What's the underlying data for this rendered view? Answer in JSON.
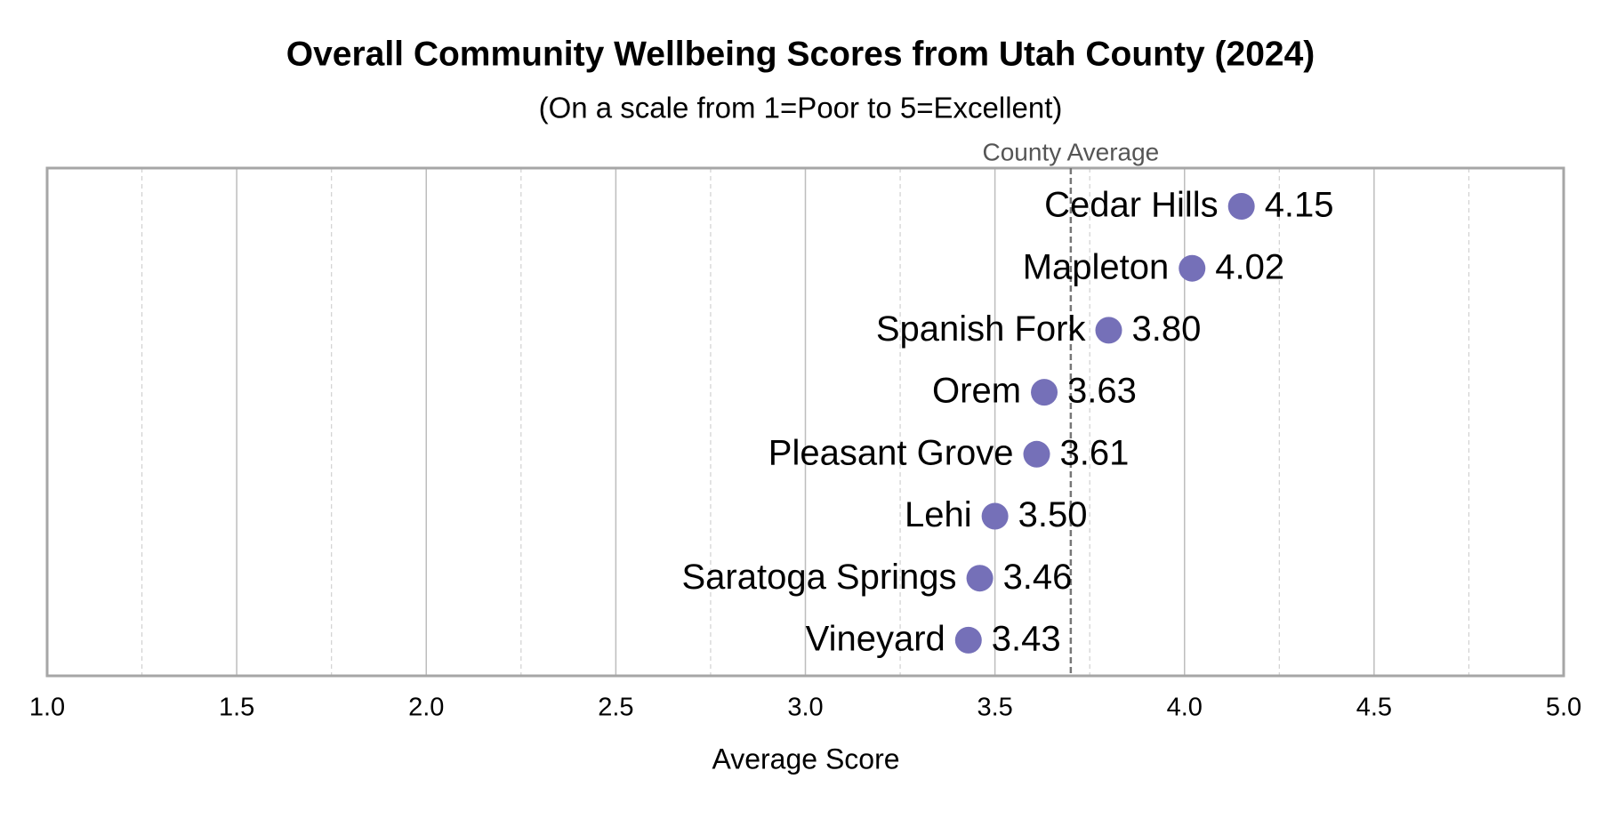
{
  "chart_data": {
    "type": "dot",
    "title": "Overall Community Wellbeing Scores from Utah County (2024)",
    "subtitle": "(On a scale from 1=Poor to 5=Excellent)",
    "x_label": "Average Score",
    "categories": [
      "Cedar Hills",
      "Mapleton",
      "Spanish Fork",
      "Orem",
      "Pleasant Grove",
      "Lehi",
      "Saratoga Springs",
      "Vineyard"
    ],
    "values": [
      4.15,
      4.02,
      3.8,
      3.63,
      3.61,
      3.5,
      3.46,
      3.43
    ],
    "value_labels": [
      "4.15",
      "4.02",
      "3.80",
      "3.63",
      "3.61",
      "3.50",
      "3.46",
      "3.43"
    ],
    "color": "#7570b8",
    "reference_line": {
      "label": "County Average",
      "value": 3.7
    },
    "xlim": [
      1,
      5
    ],
    "xticks": [
      {
        "value": 1,
        "label": "1.0"
      },
      {
        "value": 1.5,
        "label": "1.5"
      },
      {
        "value": 2,
        "label": "2.0"
      },
      {
        "value": 2.5,
        "label": "2.5"
      },
      {
        "value": 3,
        "label": "3.0"
      },
      {
        "value": 3.5,
        "label": "3.5"
      },
      {
        "value": 4,
        "label": "4.0"
      },
      {
        "value": 4.5,
        "label": "4.5"
      },
      {
        "value": 5,
        "label": "5.0"
      }
    ],
    "minor_xticks": [
      1.25,
      1.75,
      2.25,
      2.75,
      3.25,
      3.75,
      4.25,
      4.75
    ],
    "grid": true
  }
}
